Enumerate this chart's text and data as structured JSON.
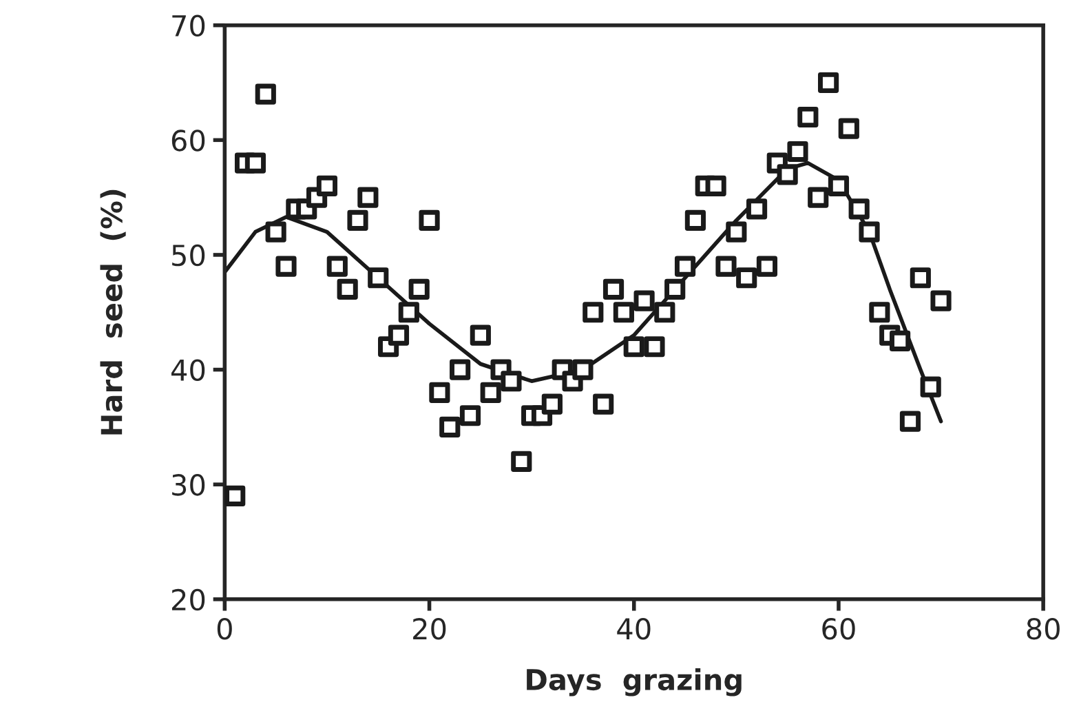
{
  "chart_data": {
    "type": "scatter",
    "xlabel": "Days  grazing",
    "ylabel": "Hard  seed  (%)",
    "xlim": [
      0,
      80
    ],
    "ylim": [
      20,
      70
    ],
    "xticks": [
      0,
      20,
      40,
      60,
      80
    ],
    "yticks": [
      20,
      30,
      40,
      50,
      60,
      70
    ],
    "grid": false,
    "marker": "square",
    "series": [
      {
        "color": "#1a1a1a",
        "x": [
          1,
          2,
          3,
          4,
          5,
          6,
          7,
          8,
          9,
          10,
          11,
          12,
          13,
          14,
          15,
          16,
          17,
          18,
          19,
          20,
          21,
          22,
          23,
          24,
          25,
          26,
          27,
          28,
          29,
          30,
          31,
          32,
          33,
          34,
          35,
          36,
          37,
          38,
          39,
          40,
          41,
          42,
          43,
          44,
          45,
          46,
          47,
          48,
          49,
          50,
          51,
          52,
          53,
          54,
          55,
          56,
          57,
          58,
          59,
          60,
          61,
          62,
          63,
          64,
          65,
          66,
          67,
          68,
          69,
          70
        ],
        "values": [
          29,
          58,
          58,
          64,
          52,
          49,
          54,
          54,
          55,
          56,
          49,
          47,
          53,
          55,
          48,
          42,
          43,
          45,
          47,
          53,
          38,
          35,
          40,
          36,
          43,
          38,
          40,
          39,
          32,
          36,
          36,
          37,
          40,
          39,
          40,
          45,
          37,
          47,
          45,
          42,
          46,
          42,
          45,
          47,
          49,
          53,
          56,
          56,
          49,
          52,
          48,
          54,
          49,
          58,
          57,
          59,
          62,
          55,
          65,
          56,
          61,
          54,
          52,
          45,
          43,
          42.5,
          35.5,
          48,
          38.5,
          46
        ]
      },
      {
        "type": "line",
        "color": "#1a1a1a",
        "marker": "none",
        "x": [
          0,
          3,
          6,
          10,
          15,
          20,
          25,
          30,
          35,
          40,
          45,
          50,
          55,
          57,
          60,
          63,
          65,
          68,
          70
        ],
        "values": [
          48.5,
          52,
          53.3,
          52,
          48,
          44,
          40.5,
          39,
          40,
          43,
          48,
          53,
          57.5,
          58,
          56.5,
          52,
          47,
          40,
          35.5
        ]
      }
    ]
  }
}
